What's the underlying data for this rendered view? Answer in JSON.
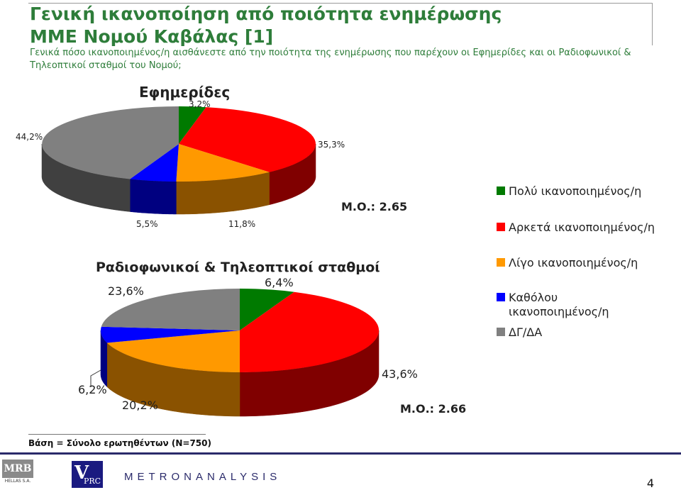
{
  "header": {
    "title_line1": "Γενική ικανοποίηση από ποιότητα ενημέρωσης",
    "title_line2": "ΜΜΕ Νομού Καβάλας [1]",
    "subtitle": "Γενικά πόσο ικανοποιημένος/η αισθάνεστε από την ποιότητα της ενημέρωσης που παρέχουν οι Εφημερίδες και οι Ραδιοφωνικοί & Τηλεοπτικοί σταθμοί του Νομού;"
  },
  "chart_data": [
    {
      "type": "pie",
      "title": "Εφημερίδες",
      "categories": [
        "Πολύ ικανοποιημένος/η",
        "Αρκετά ικανοποιημένος/η",
        "Λίγο ικανοποιημένος/η",
        "Καθόλου ικανοποιημένος/η",
        "ΔΓ/ΔΑ"
      ],
      "values": [
        3.2,
        35.3,
        11.8,
        5.5,
        44.2
      ],
      "labels": [
        "3,2%",
        "35,3%",
        "11,8%",
        "5,5%",
        "44,2%"
      ],
      "annotation": "Μ.Ο.: 2.65"
    },
    {
      "type": "pie",
      "title": "Ραδιοφωνικοί & Τηλεοπτικοί σταθμοί",
      "categories": [
        "Πολύ ικανοποιημένος/η",
        "Αρκετά ικανοποιημένος/η",
        "Λίγο ικανοποιημένος/η",
        "Καθόλου ικανοποιημένος/η",
        "ΔΓ/ΔΑ"
      ],
      "values": [
        6.4,
        43.6,
        20.2,
        6.2,
        23.6
      ],
      "labels": [
        "6,4%",
        "43,6%",
        "20,2%",
        "6,2%",
        "23,6%"
      ],
      "annotation": "Μ.Ο.: 2.66"
    }
  ],
  "legend": {
    "position": "right",
    "items": [
      {
        "label": "Πολύ ικανοποιημένος/η",
        "color": "#007a00"
      },
      {
        "label": "Αρκετά ικανοποιημένος/η",
        "color": "#ff0000"
      },
      {
        "label": "Λίγο ικανοποιημένος/η",
        "color": "#ff9900"
      },
      {
        "label": "Καθόλου ικανοποιημένος/η",
        "color": "#0000ff"
      },
      {
        "label": "ΔΓ/ΔΑ",
        "color": "#808080"
      }
    ]
  },
  "colors": {
    "title": "#2e7d3a",
    "slices_top": [
      "#007a00",
      "#ff0000",
      "#ff9900",
      "#0000ff",
      "#808080"
    ],
    "slices_side": [
      "#004d00",
      "#800000",
      "#8a5200",
      "#000080",
      "#404040"
    ]
  },
  "footer": {
    "base": "Βάση = Σύνολο ερωτηθέντων (N=750)",
    "logos": [
      "MRB",
      "HELLAS S.A.",
      "V",
      "PRC",
      "METRONANALYSIS"
    ],
    "page_number": "4"
  }
}
